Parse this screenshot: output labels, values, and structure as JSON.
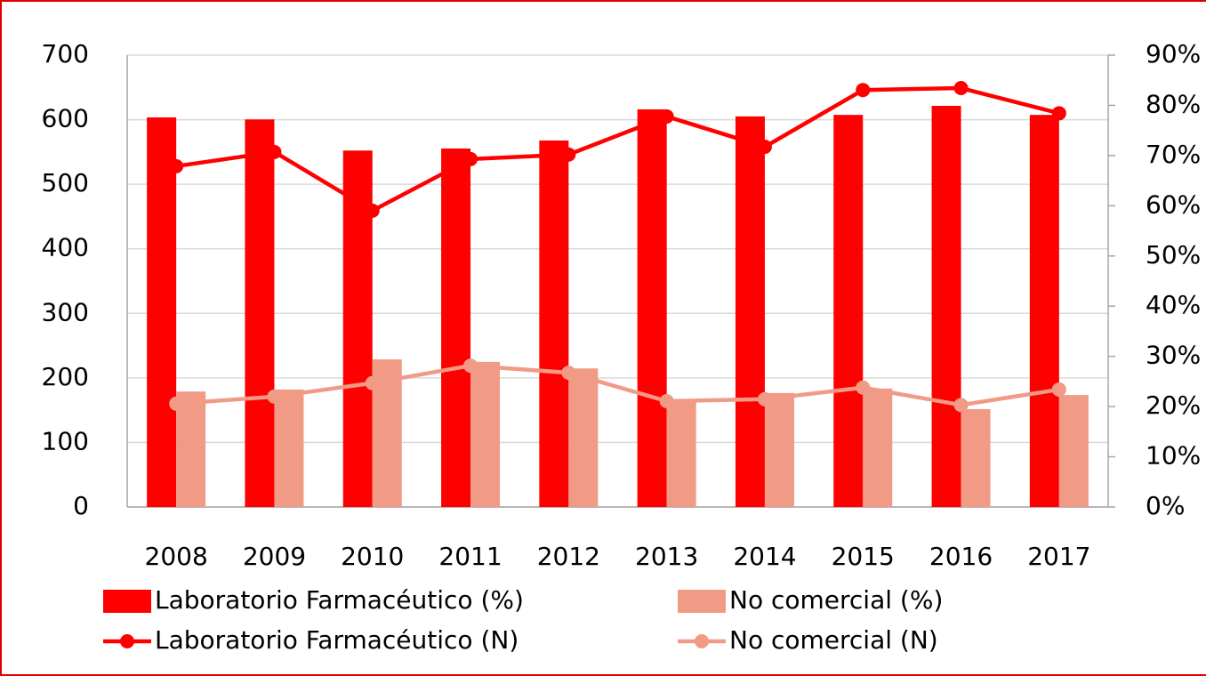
{
  "chart_data": {
    "type": "bar",
    "categories": [
      "2008",
      "2009",
      "2010",
      "2011",
      "2012",
      "2013",
      "2014",
      "2015",
      "2016",
      "2017"
    ],
    "series": [
      {
        "name": "Laboratorio Farmacéutico (%)",
        "type": "bar",
        "axis": "y2",
        "color": "#ff0000",
        "values": [
          77.6,
          77.2,
          71.0,
          71.4,
          73.0,
          79.2,
          77.8,
          78.1,
          79.9,
          78.1
        ]
      },
      {
        "name": "No comercial (%)",
        "type": "bar",
        "axis": "y2",
        "color": "#f19a86",
        "values": [
          23.0,
          23.4,
          29.4,
          28.9,
          27.6,
          21.3,
          22.7,
          23.6,
          19.5,
          22.3
        ]
      },
      {
        "name": "Laboratorio Farmacéutico (N)",
        "type": "line",
        "color": "#ff0000",
        "values": [
          528,
          550,
          459,
          539,
          546,
          605,
          558,
          646,
          649,
          610
        ]
      },
      {
        "name": "No comercial (N)",
        "type": "line",
        "color": "#f19a86",
        "values": [
          160,
          171,
          192,
          219,
          208,
          164,
          167,
          185,
          158,
          182
        ]
      }
    ],
    "ylim": [
      0,
      700
    ],
    "yticks": [
      0,
      100,
      200,
      300,
      400,
      500,
      600,
      700
    ],
    "y2lim": [
      0,
      90
    ],
    "y2ticks": [
      {
        "value": 0,
        "label": "0%"
      },
      {
        "value": 10,
        "label": "10%"
      },
      {
        "value": 20,
        "label": "20%"
      },
      {
        "value": 30,
        "label": "30%"
      },
      {
        "value": 40,
        "label": "40%"
      },
      {
        "value": 50,
        "label": "50%"
      },
      {
        "value": 60,
        "label": "60%"
      },
      {
        "value": 70,
        "label": "70%"
      },
      {
        "value": 80,
        "label": "80%"
      },
      {
        "value": 90,
        "label": "90%"
      }
    ],
    "grid": true,
    "legend": "bottom"
  }
}
